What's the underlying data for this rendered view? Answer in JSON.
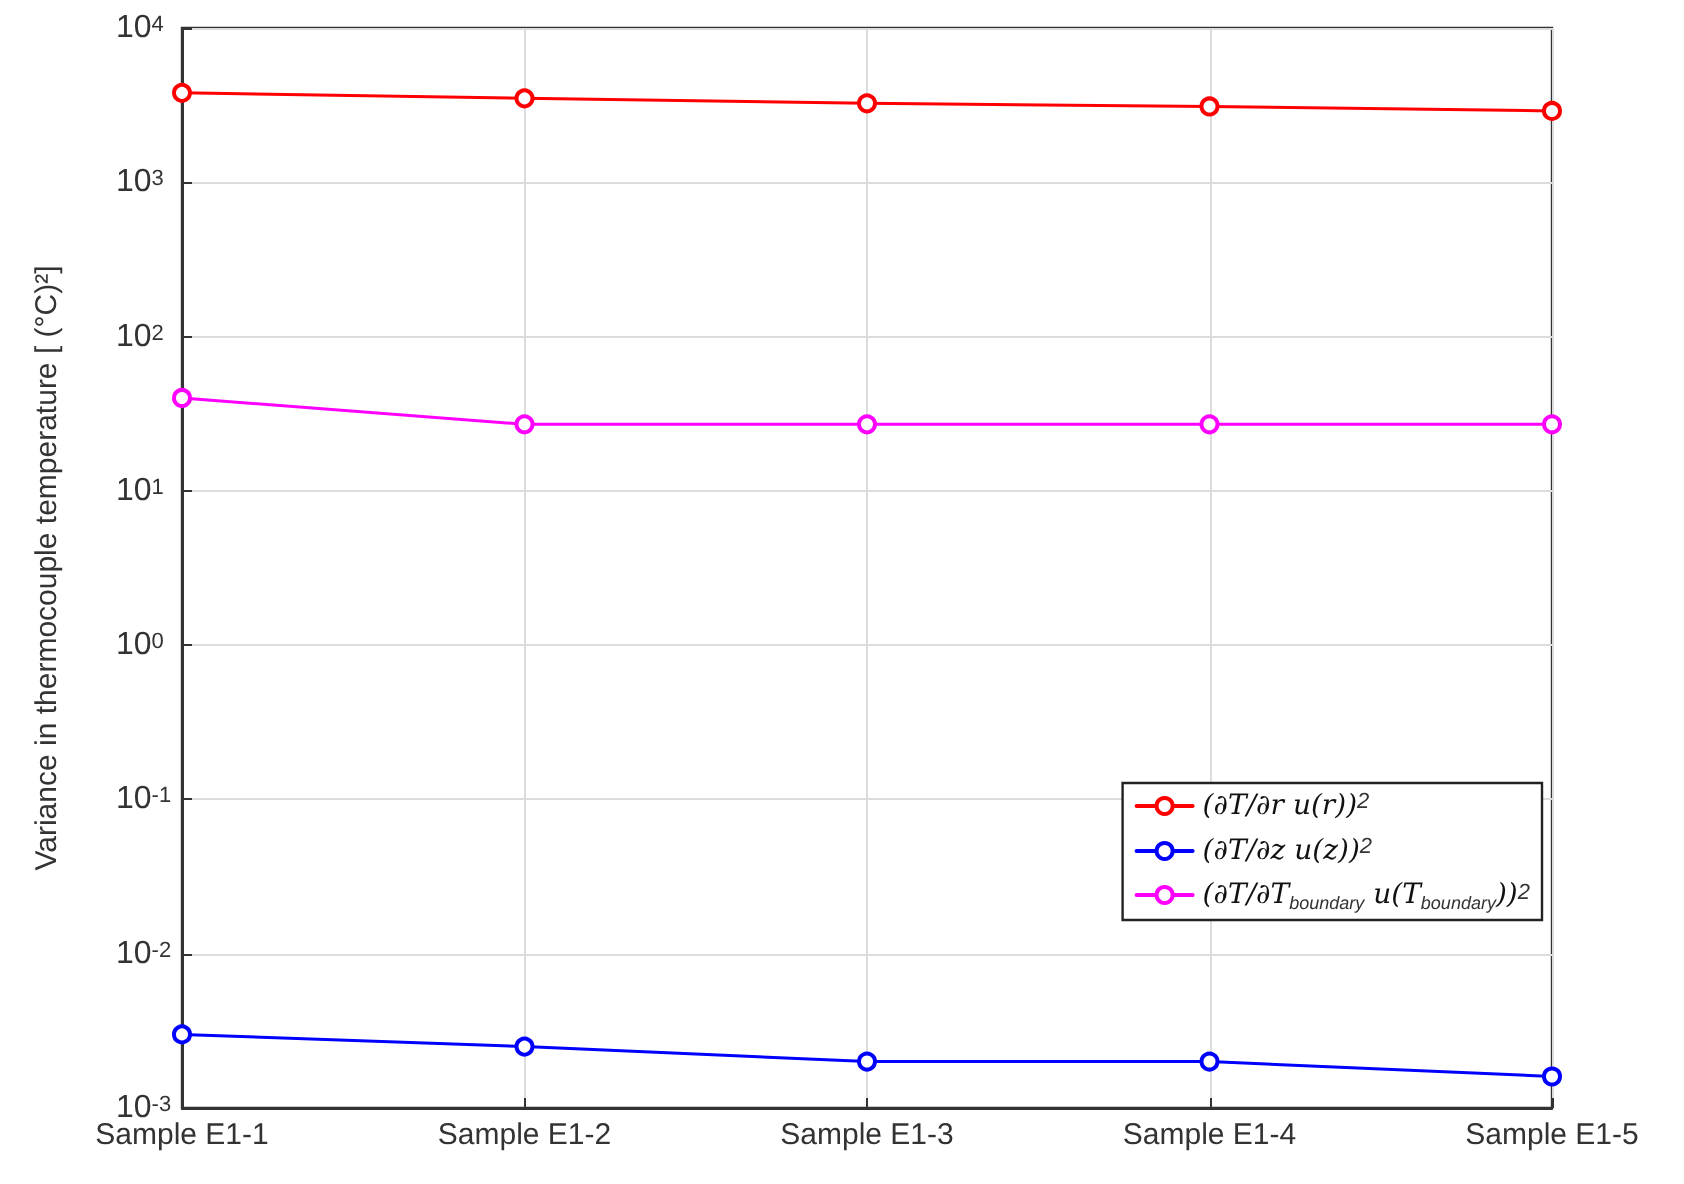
{
  "chart_data": {
    "type": "line",
    "ylabel": "Variance in thermocouple temperature [ (°C)²]",
    "categories": [
      "Sample E1-1",
      "Sample E1-2",
      "Sample E1-3",
      "Sample E1-4",
      "Sample E1-5"
    ],
    "series": [
      {
        "name": "(∂T/∂r u(r))$^{2}$",
        "color": "#ff0000",
        "values": [
          3800,
          3500,
          3250,
          3100,
          2900
        ]
      },
      {
        "name": "(∂T/∂z u(z))$^{2}$",
        "color": "#0000ff",
        "values": [
          0.003,
          0.0025,
          0.002,
          0.002,
          0.0016
        ]
      },
      {
        "name": "(∂T/∂T$_{boundary}$ u(T$_{boundary}$))$^{2}$",
        "color": "#ff00ff",
        "values": [
          40,
          27,
          27,
          27,
          27
        ]
      }
    ],
    "log": "y",
    "ylim": [
      0.001,
      10000
    ],
    "yticks": [
      {
        "value": 0.001,
        "label": "10$^{-3}$"
      },
      {
        "value": 0.01,
        "label": "10$^{-2}$"
      },
      {
        "value": 0.1,
        "label": "10$^{-1}$"
      },
      {
        "value": 1,
        "label": "10$^{0}$"
      },
      {
        "value": 10,
        "label": "10$^{1}$"
      },
      {
        "value": 100,
        "label": "10$^{2}$"
      },
      {
        "value": 1000,
        "label": "10$^{3}$"
      },
      {
        "value": 10000,
        "label": "10$^{4}$"
      }
    ],
    "grid": true,
    "legend": "bottom right",
    "marker": "circle",
    "line_style": "solid"
  }
}
